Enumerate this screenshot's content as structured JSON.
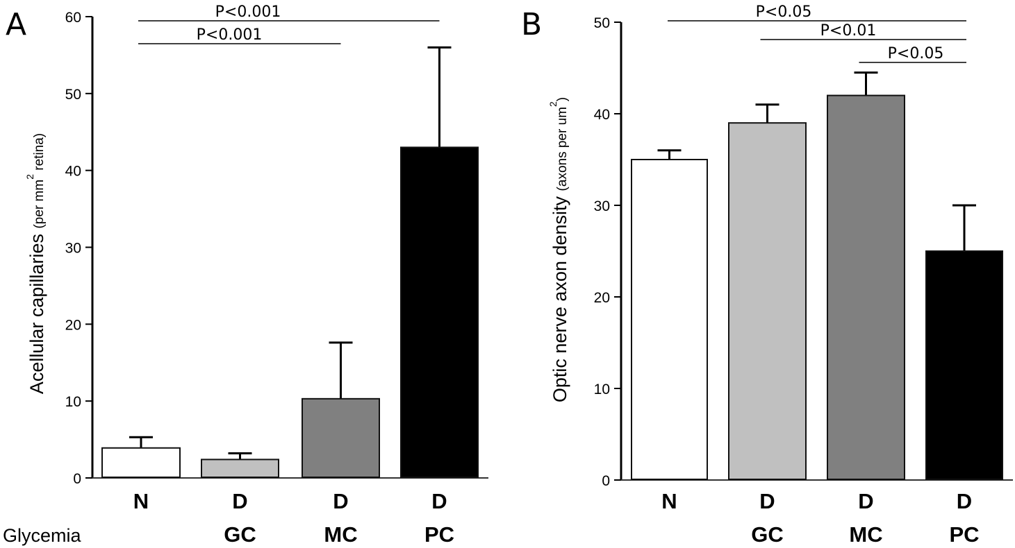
{
  "row_label": "Glycemia",
  "chart_data": [
    {
      "type": "bar",
      "panel": "A",
      "title": "",
      "ylabel": "Acellular capillaries",
      "ylabel_unit_prefix": "(per mm",
      "ylabel_unit_sup": "2",
      "ylabel_unit_suffix": " retina)",
      "xlabel": "",
      "ylim": [
        0,
        60
      ],
      "yticks": [
        0,
        10,
        20,
        30,
        40,
        50,
        60
      ],
      "categories": [
        {
          "top": "N",
          "bottom": ""
        },
        {
          "top": "D",
          "bottom": "GC"
        },
        {
          "top": "D",
          "bottom": "MC"
        },
        {
          "top": "D",
          "bottom": "PC"
        }
      ],
      "values": [
        3.9,
        2.4,
        10.3,
        43.0
      ],
      "errors": [
        1.4,
        0.8,
        7.3,
        13.0
      ],
      "colors": [
        "#ffffff",
        "#c0c0c0",
        "#808080",
        "#000000"
      ],
      "grid": false,
      "significance": [
        {
          "from": 0,
          "to": 3,
          "label": "P<0.001"
        },
        {
          "from": 0,
          "to": 2,
          "label": "P<0.001"
        }
      ]
    },
    {
      "type": "bar",
      "panel": "B",
      "title": "",
      "ylabel": "Optic nerve axon density",
      "ylabel_unit_prefix": "(axons per um",
      "ylabel_unit_sup": "2",
      "ylabel_unit_suffix": ")",
      "xlabel": "",
      "ylim": [
        0,
        50
      ],
      "yticks": [
        0,
        10,
        20,
        30,
        40,
        50
      ],
      "categories": [
        {
          "top": "N",
          "bottom": ""
        },
        {
          "top": "D",
          "bottom": "GC"
        },
        {
          "top": "D",
          "bottom": "MC"
        },
        {
          "top": "D",
          "bottom": "PC"
        }
      ],
      "values": [
        35.0,
        39.0,
        42.0,
        25.0
      ],
      "errors": [
        1.0,
        2.0,
        2.5,
        5.0
      ],
      "colors": [
        "#ffffff",
        "#c0c0c0",
        "#808080",
        "#000000"
      ],
      "grid": false,
      "significance": [
        {
          "from": 0,
          "to": 3,
          "label": "P<0.05"
        },
        {
          "from": 1,
          "to": 3,
          "label": "P<0.01"
        },
        {
          "from": 2,
          "to": 3,
          "label": "P<0.05"
        }
      ]
    }
  ]
}
